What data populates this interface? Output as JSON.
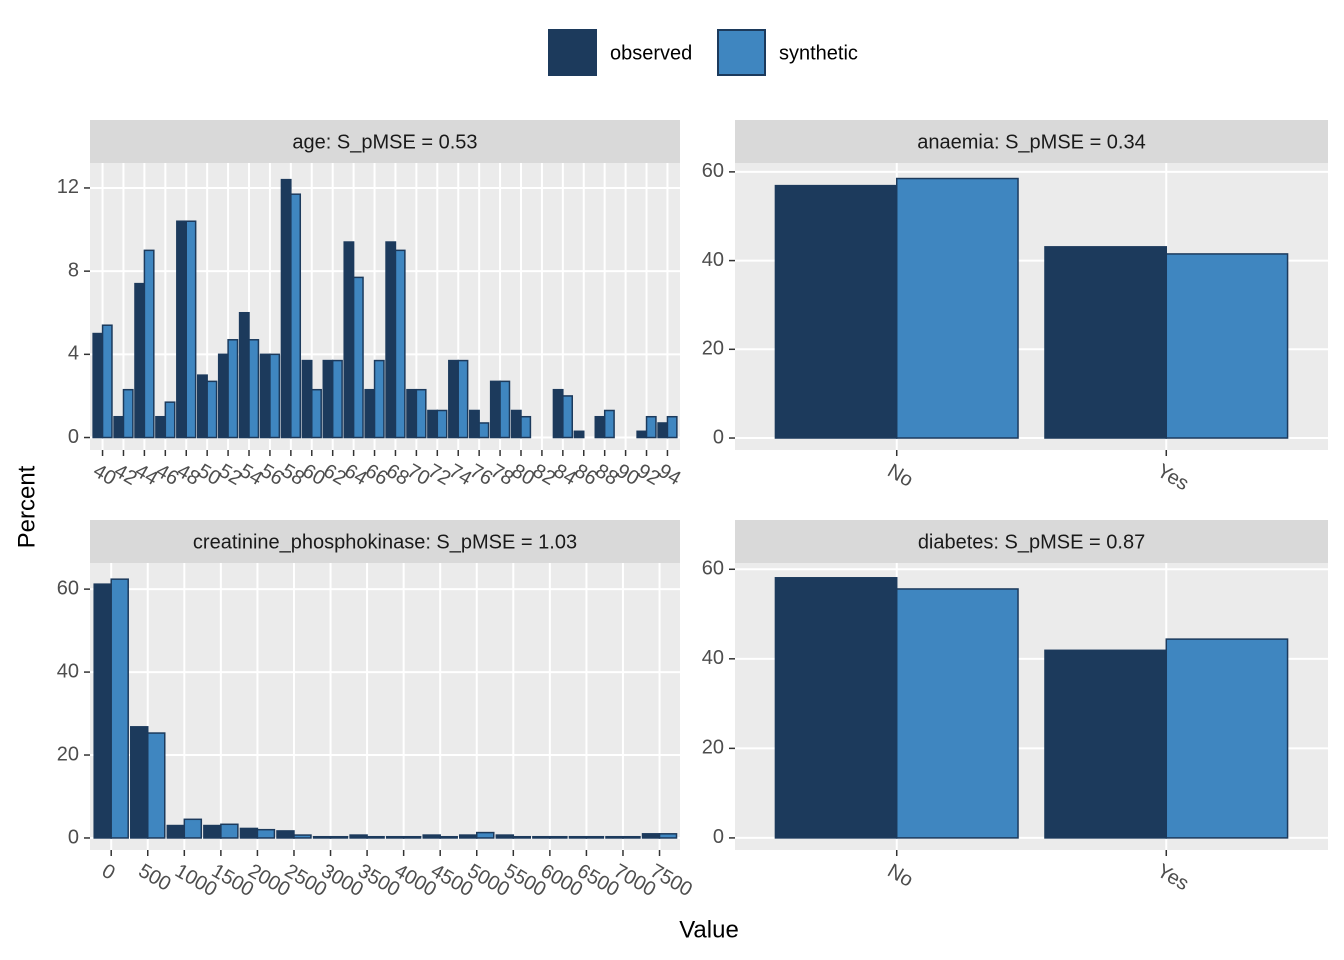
{
  "legend": [
    {
      "name": "observed",
      "color": "#1c3a5c"
    },
    {
      "name": "synthetic",
      "color": "#3f86c0"
    }
  ],
  "y_label": "Percent",
  "x_label": "Value",
  "chart_data": [
    {
      "type": "bar",
      "title": "age: S_pMSE = 0.53",
      "categories": [
        40,
        42,
        44,
        46,
        48,
        50,
        52,
        54,
        56,
        58,
        60,
        62,
        64,
        66,
        68,
        70,
        72,
        74,
        76,
        78,
        80,
        82,
        84,
        86,
        88,
        90,
        92,
        94
      ],
      "series": [
        {
          "values": [
            5.0,
            1.0,
            7.4,
            1.0,
            10.4,
            3.0,
            4.0,
            6.0,
            4.0,
            12.4,
            3.7,
            3.7,
            9.4,
            2.3,
            9.4,
            2.3,
            1.3,
            3.7,
            1.3,
            2.7,
            1.3,
            0,
            2.3,
            0.3,
            1.0,
            0,
            0.3,
            0.7
          ]
        },
        {
          "values": [
            5.4,
            2.3,
            9.0,
            1.7,
            10.4,
            2.7,
            4.7,
            4.7,
            4.0,
            11.7,
            2.3,
            3.7,
            7.7,
            3.7,
            9.0,
            2.3,
            1.3,
            3.7,
            0.7,
            2.7,
            1.0,
            0,
            2.0,
            0,
            1.3,
            0,
            1.0,
            1.0
          ]
        }
      ],
      "ylim": [
        -0.6,
        13.2
      ],
      "yticks": [
        0,
        4,
        8,
        12
      ],
      "grid": true
    },
    {
      "type": "bar",
      "title": "anaemia: S_pMSE = 0.34",
      "categories": [
        "No",
        "Yes"
      ],
      "series": [
        {
          "values": [
            56.9,
            43.1
          ]
        },
        {
          "values": [
            58.5,
            41.5
          ]
        }
      ],
      "ylim": [
        -2.7,
        62.0
      ],
      "yticks": [
        0,
        20,
        40,
        60
      ],
      "grid": true
    },
    {
      "type": "numeric_bar",
      "title": "creatinine_phosphokinase: S_pMSE = 1.03",
      "x": [
        0,
        500,
        1000,
        1500,
        2000,
        2500,
        3000,
        3500,
        4000,
        4500,
        5000,
        5500,
        6000,
        6500,
        7000,
        7500
      ],
      "series": [
        {
          "values": [
            61.2,
            26.8,
            3.0,
            3.0,
            2.3,
            1.7,
            0.3,
            0.7,
            0.3,
            0.7,
            0.7,
            0.7,
            0.3,
            0.3,
            0.3,
            1.0
          ]
        },
        {
          "values": [
            62.4,
            25.3,
            4.5,
            3.3,
            2.0,
            0.7,
            0.3,
            0.3,
            0.3,
            0.3,
            1.3,
            0.3,
            0.3,
            0.3,
            0.3,
            1.0
          ]
        }
      ],
      "xlim": [
        -290,
        7780
      ],
      "xticks": [
        0,
        500,
        1000,
        1500,
        2000,
        2500,
        3000,
        3500,
        4000,
        4500,
        5000,
        5500,
        6000,
        6500,
        7000,
        7500
      ],
      "ylim": [
        -2.9,
        66.3
      ],
      "yticks": [
        0,
        20,
        40,
        60
      ],
      "grid": true
    },
    {
      "type": "bar",
      "title": "diabetes: S_pMSE = 0.87",
      "categories": [
        "No",
        "Yes"
      ],
      "series": [
        {
          "values": [
            58.1,
            41.9
          ]
        },
        {
          "values": [
            55.6,
            44.4
          ]
        }
      ],
      "ylim": [
        -2.7,
        61.4
      ],
      "yticks": [
        0,
        20,
        40,
        60
      ],
      "grid": true
    }
  ]
}
